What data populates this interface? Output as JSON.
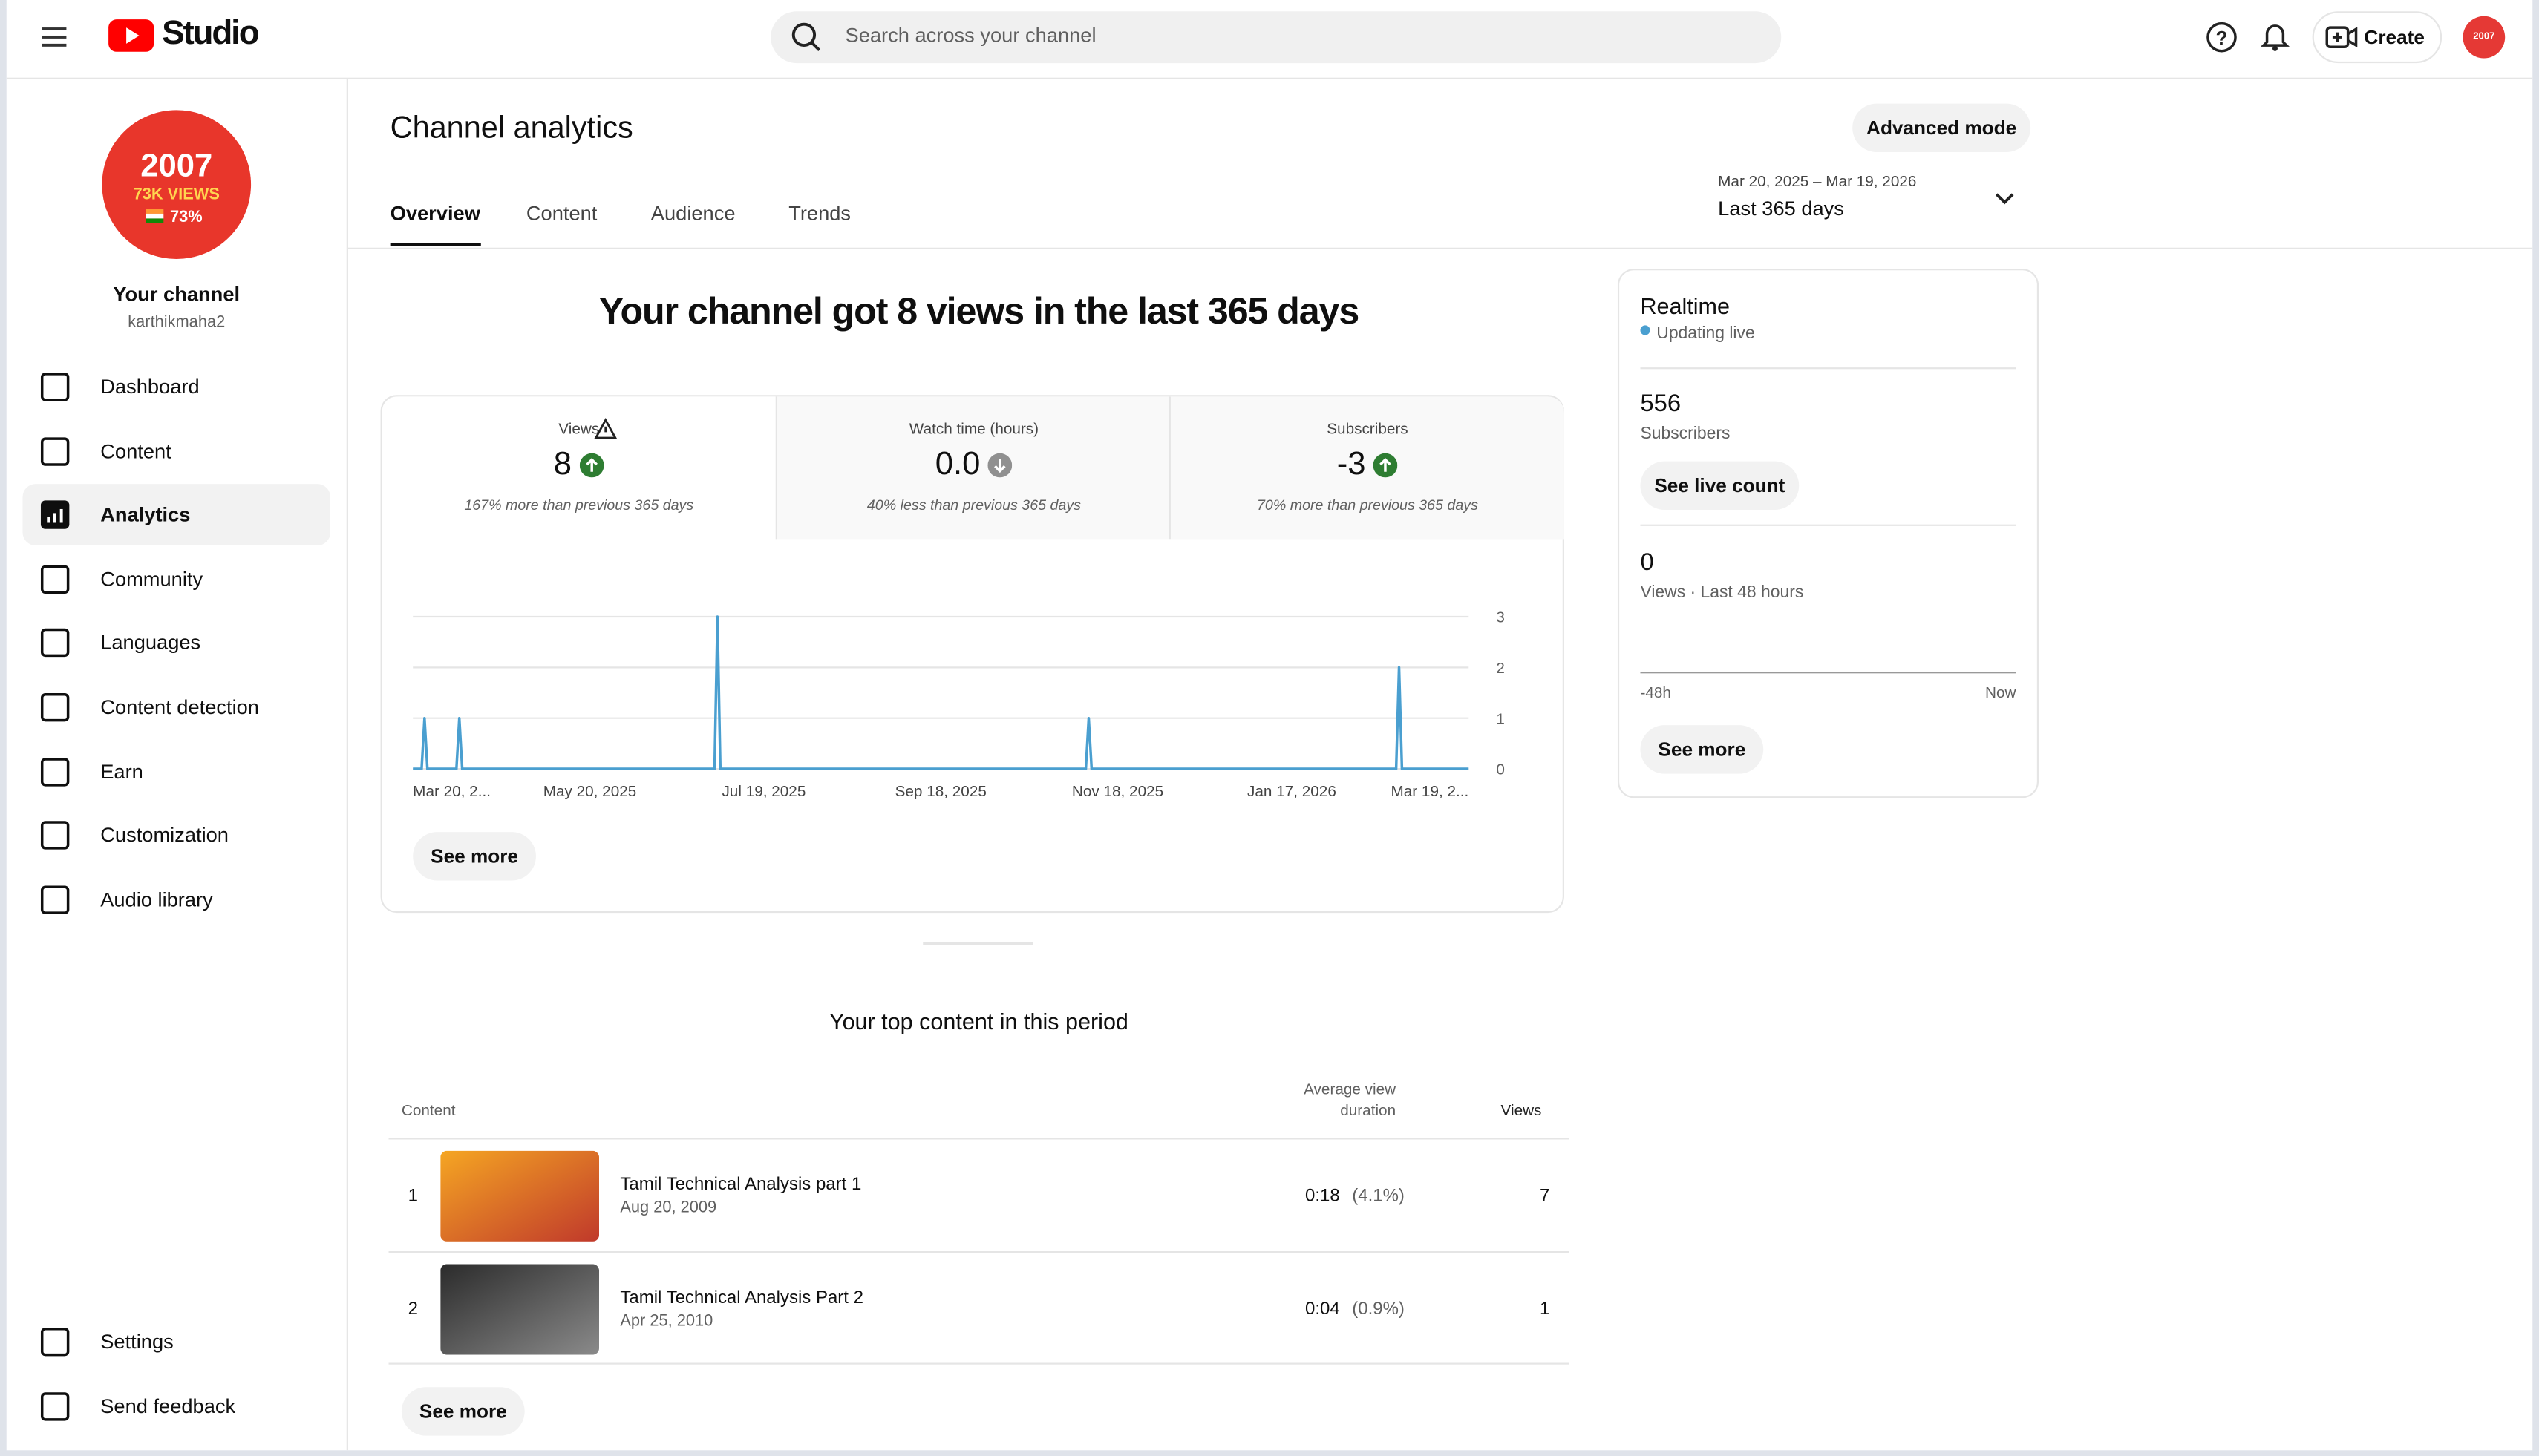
{
  "header": {
    "logo": "Studio",
    "search_placeholder": "Search across your channel",
    "create": "Create"
  },
  "sidebar": {
    "avatar": {
      "line1": "2007",
      "line2": "73K VIEWS",
      "line3": "73%"
    },
    "channel_name": "Your channel",
    "handle": "karthikmaha2",
    "nav": [
      "Dashboard",
      "Content",
      "Analytics",
      "Community",
      "Languages",
      "Content detection",
      "Earn",
      "Customization",
      "Audio library"
    ],
    "active_nav": 2,
    "footer_nav": [
      "Settings",
      "Send feedback"
    ]
  },
  "page": {
    "title": "Channel analytics",
    "advanced_mode": "Advanced mode",
    "date_range": "Mar 20, 2025 – Mar 19, 2026",
    "period": "Last 365 days",
    "tabs": [
      "Overview",
      "Content",
      "Audience",
      "Trends"
    ],
    "active_tab": 0,
    "headline": "Your channel got 8 views in the last 365 days"
  },
  "metrics": [
    {
      "label": "Views",
      "value": "8",
      "trend": "up",
      "note": "167% more than previous 365 days"
    },
    {
      "label": "Watch time (hours)",
      "value": "0.0",
      "trend": "down",
      "note": "40% less than previous 365 days"
    },
    {
      "label": "Subscribers",
      "value": "-3",
      "trend": "up",
      "note": "70% more than previous 365 days"
    }
  ],
  "chart_data": {
    "type": "line",
    "x": [
      "2025-03-20",
      "2025-03-23",
      "2025-03-24",
      "2025-03-25",
      "2025-04-04",
      "2025-04-05",
      "2025-04-06",
      "2025-07-02",
      "2025-07-03",
      "2025-07-04",
      "2025-11-07",
      "2025-11-08",
      "2025-11-09",
      "2026-02-22",
      "2026-02-23",
      "2026-02-24",
      "2026-03-19"
    ],
    "values": [
      0,
      0,
      1,
      0,
      0,
      1,
      0,
      0,
      3,
      0,
      0,
      1,
      0,
      0,
      2,
      0,
      0
    ],
    "color": "#4a9fd0",
    "xlim": [
      "2025-03-20",
      "2026-03-19"
    ],
    "xticks": [
      {
        "value": "2025-03-20",
        "label": "Mar 20, 2..."
      },
      {
        "value": "2025-05-20",
        "label": "May 20, 2025"
      },
      {
        "value": "2025-07-19",
        "label": "Jul 19, 2025"
      },
      {
        "value": "2025-09-18",
        "label": "Sep 18, 2025"
      },
      {
        "value": "2025-11-18",
        "label": "Nov 18, 2025"
      },
      {
        "value": "2026-01-17",
        "label": "Jan 17, 2026"
      },
      {
        "value": "2026-03-19",
        "label": "Mar 19, 2..."
      }
    ],
    "ylim": [
      0,
      3
    ],
    "yticks": [
      0,
      1,
      2,
      3
    ],
    "grid": true
  },
  "chart_see_more": "See more",
  "realtime": {
    "title": "Realtime",
    "status": "Updating live",
    "subscribers": "556",
    "subscribers_label": "Subscribers",
    "see_live_count": "See live count",
    "views": "0",
    "views_label": "Views · Last 48 hours",
    "axis_start": "-48h",
    "axis_end": "Now",
    "see_more": "See more"
  },
  "top_content": {
    "title": "Your top content in this period",
    "columns": [
      "Content",
      "Average view duration",
      "Views"
    ],
    "rows": [
      {
        "rank": "1",
        "title": "Tamil Technical Analysis part 1",
        "date": "Aug 20, 2009",
        "duration": "0:18",
        "percent": "(4.1%)",
        "views": "7"
      },
      {
        "rank": "2",
        "title": "Tamil Technical Analysis Part 2",
        "date": "Apr 25, 2010",
        "duration": "0:04",
        "percent": "(0.9%)",
        "views": "1"
      }
    ],
    "see_more": "See more"
  }
}
